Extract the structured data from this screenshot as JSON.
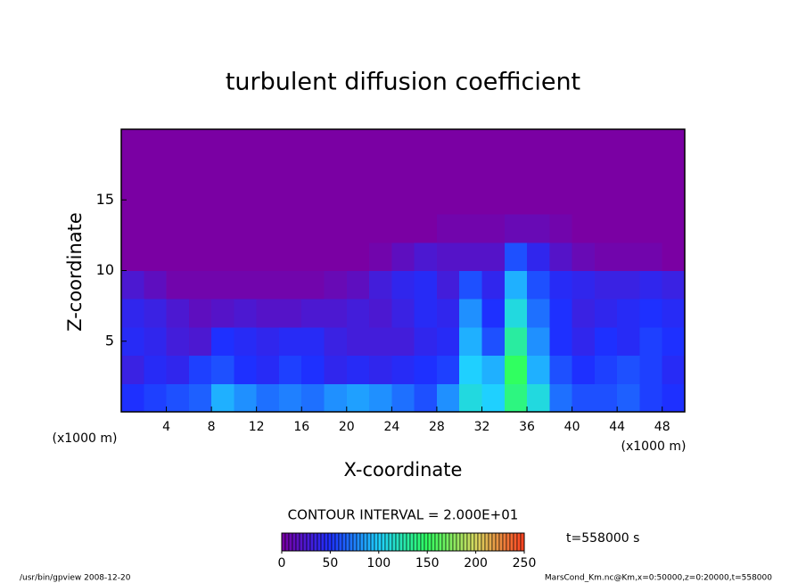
{
  "chart_data": {
    "type": "heatmap",
    "title": "turbulent diffusion coefficient",
    "x_label": "X-coordinate",
    "y_label": "Z-coordinate",
    "x_unit_left": "(x1000 m)",
    "x_unit_right": "(x1000 m)",
    "contour_note": "CONTOUR INTERVAL = 2.000E+01",
    "time_note": "t=558000 s",
    "footer_left": "/usr/bin/gpview   2008-12-20",
    "footer_right": "MarsCond_Km.nc@Km,x=0:50000,z=0:20000,t=558000",
    "xlim": [
      0,
      50
    ],
    "ylim": [
      0,
      20
    ],
    "xticks": [
      4,
      8,
      12,
      16,
      20,
      24,
      28,
      32,
      36,
      40,
      44,
      48
    ],
    "yticks": [
      5,
      10,
      15
    ],
    "xbins": [
      0,
      2,
      4,
      6,
      8,
      10,
      12,
      14,
      16,
      18,
      20,
      22,
      24,
      26,
      28,
      30,
      32,
      34,
      36,
      38,
      40,
      42,
      44,
      46,
      48,
      50
    ],
    "zbins": [
      0,
      2,
      4,
      6,
      8,
      10,
      12,
      14,
      16,
      18,
      20
    ],
    "values": [
      [
        50,
        55,
        60,
        65,
        90,
        80,
        70,
        75,
        70,
        80,
        85,
        80,
        70,
        60,
        80,
        110,
        100,
        140,
        110,
        70,
        60,
        60,
        65,
        55,
        50
      ],
      [
        35,
        45,
        40,
        55,
        60,
        50,
        45,
        55,
        50,
        40,
        45,
        40,
        45,
        50,
        55,
        100,
        90,
        150,
        90,
        60,
        50,
        55,
        60,
        55,
        45
      ],
      [
        45,
        40,
        30,
        25,
        50,
        45,
        40,
        45,
        45,
        35,
        30,
        30,
        30,
        40,
        45,
        90,
        60,
        130,
        80,
        50,
        40,
        50,
        45,
        55,
        50
      ],
      [
        40,
        35,
        25,
        15,
        20,
        25,
        20,
        20,
        25,
        25,
        30,
        25,
        35,
        45,
        40,
        80,
        50,
        110,
        70,
        50,
        35,
        40,
        45,
        50,
        45
      ],
      [
        25,
        15,
        5,
        5,
        5,
        5,
        5,
        5,
        5,
        10,
        15,
        30,
        40,
        45,
        30,
        60,
        40,
        90,
        60,
        45,
        40,
        35,
        35,
        40,
        35
      ],
      [
        0,
        0,
        0,
        0,
        0,
        0,
        0,
        0,
        0,
        0,
        0,
        5,
        15,
        25,
        20,
        20,
        20,
        60,
        40,
        20,
        10,
        5,
        5,
        5,
        0
      ],
      [
        0,
        0,
        0,
        0,
        0,
        0,
        0,
        0,
        0,
        0,
        0,
        0,
        0,
        0,
        5,
        5,
        5,
        10,
        10,
        5,
        0,
        0,
        0,
        0,
        0
      ],
      [
        0,
        0,
        0,
        0,
        0,
        0,
        0,
        0,
        0,
        0,
        0,
        0,
        0,
        0,
        0,
        0,
        0,
        0,
        0,
        0,
        0,
        0,
        0,
        0,
        0
      ],
      [
        0,
        0,
        0,
        0,
        0,
        0,
        0,
        0,
        0,
        0,
        0,
        0,
        0,
        0,
        0,
        0,
        0,
        0,
        0,
        0,
        0,
        0,
        0,
        0,
        0
      ],
      [
        0,
        0,
        0,
        0,
        0,
        0,
        0,
        0,
        0,
        0,
        0,
        0,
        0,
        0,
        0,
        0,
        0,
        0,
        0,
        0,
        0,
        0,
        0,
        0,
        0
      ]
    ],
    "clim": [
      0,
      250
    ],
    "cbar_ticks": [
      0,
      50,
      100,
      150,
      200,
      250
    ],
    "colormap": [
      "#7a00a3",
      "#1e30ff",
      "#1fd0ff",
      "#30ff60",
      "#d8d860",
      "#ff4020"
    ]
  }
}
